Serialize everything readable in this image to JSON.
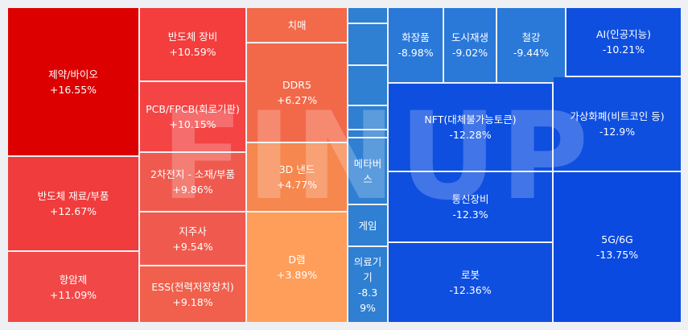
{
  "chart_data": {
    "type": "treemap",
    "watermark": "FINUP",
    "categories": [
      "제약/바이오",
      "반도체 재료/부품",
      "항암제",
      "반도체 장비",
      "PCB/FPCB(회로기판)",
      "2차전지 - 소재/부품",
      "지주사",
      "ESS(전력저장장치)",
      "치매",
      "DDR5",
      "3D 낸드",
      "D램",
      "메타버스",
      "게임",
      "의료기기",
      "화장품",
      "도시재생",
      "철강",
      "AI(인공지능)",
      "NFT(대체불가능토큰)",
      "통신장비",
      "로봇",
      "가상화폐(비트코인 등)",
      "5G/6G"
    ],
    "values": [
      16.55,
      12.67,
      11.09,
      10.59,
      10.15,
      9.86,
      9.54,
      9.18,
      null,
      6.27,
      4.77,
      3.89,
      null,
      null,
      -8.39,
      -8.98,
      -9.02,
      -9.44,
      -10.21,
      -12.28,
      -12.3,
      -12.36,
      -12.9,
      -13.75
    ],
    "value_labels": [
      "+16.55%",
      "+12.67%",
      "+11.09%",
      "+10.59%",
      "+10.15%",
      "+9.86%",
      "+9.54%",
      "+9.18%",
      null,
      "+6.27%",
      "+4.77%",
      "+3.89%",
      null,
      null,
      "-8.39%",
      "-8.98%",
      "-9.02%",
      "-9.44%",
      "-10.21%",
      "-12.28%",
      "-12.3%",
      "-12.36%",
      "-12.9%",
      "-13.75%"
    ],
    "colors": [
      "#dc0000",
      "#f03c3c",
      "#f24747",
      "#f43d3d",
      "#f44444",
      "#f05a4e",
      "#f05a4e",
      "#f0604c",
      "#f26a4a",
      "#f2694a",
      "#f5874f",
      "#ff9e5a",
      "#2f7fd2",
      "#2f7fd2",
      "#2f7fd2",
      "#2a78d8",
      "#2a78d8",
      "#2a78d8",
      "#0e4fe0",
      "#0e4fe0",
      "#0e4fe0",
      "#0e4fe0",
      "#0e4fe0",
      "#0a4ae0"
    ]
  }
}
